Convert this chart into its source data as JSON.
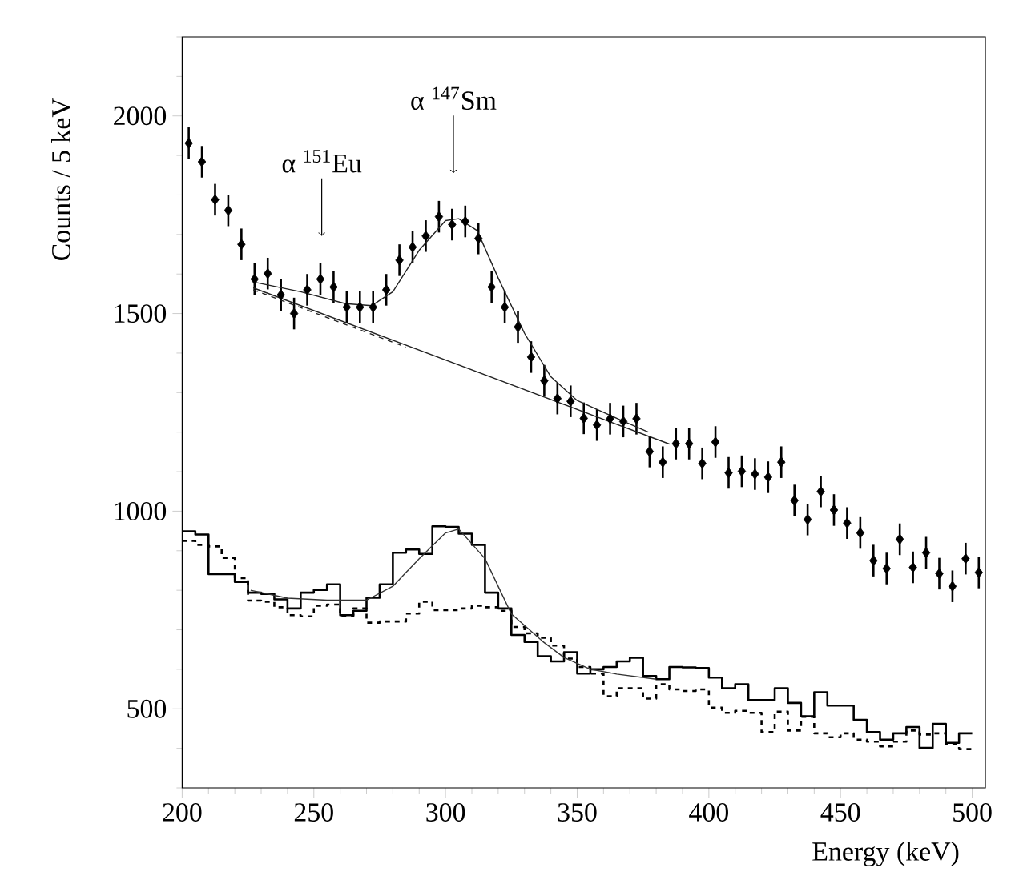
{
  "chart_data": {
    "type": "line",
    "xlabel": "Energy (keV)",
    "ylabel": "Counts / 5 keV",
    "xlim": [
      200,
      505
    ],
    "ylim": [
      300,
      2200
    ],
    "xticks": [
      200,
      {
        "value": 210,
        "label": null
      },
      {
        "value": 220,
        "label": null
      },
      {
        "value": 230,
        "label": null
      },
      {
        "value": 240,
        "label": null
      },
      250,
      {
        "value": 260,
        "label": null
      },
      {
        "value": 270,
        "label": null
      },
      {
        "value": 280,
        "label": null
      },
      {
        "value": 290,
        "label": null
      },
      300,
      {
        "value": 310,
        "label": null
      },
      {
        "value": 320,
        "label": null
      },
      {
        "value": 330,
        "label": null
      },
      {
        "value": 340,
        "label": null
      },
      350,
      {
        "value": 360,
        "label": null
      },
      {
        "value": 370,
        "label": null
      },
      {
        "value": 380,
        "label": null
      },
      {
        "value": 390,
        "label": null
      },
      400,
      {
        "value": 410,
        "label": null
      },
      {
        "value": 420,
        "label": null
      },
      {
        "value": 430,
        "label": null
      },
      {
        "value": 440,
        "label": null
      },
      450,
      {
        "value": 460,
        "label": null
      },
      {
        "value": 470,
        "label": null
      },
      {
        "value": 480,
        "label": null
      },
      {
        "value": 490,
        "label": null
      },
      500
    ],
    "yticks": [
      {
        "value": 300,
        "label": null
      },
      {
        "value": 400,
        "label": null
      },
      500,
      {
        "value": 600,
        "label": null
      },
      {
        "value": 700,
        "label": null
      },
      {
        "value": 800,
        "label": null
      },
      {
        "value": 900,
        "label": null
      },
      1000,
      {
        "value": 1100,
        "label": null
      },
      {
        "value": 1200,
        "label": null
      },
      {
        "value": 1300,
        "label": null
      },
      {
        "value": 1400,
        "label": null
      },
      1500,
      {
        "value": 1600,
        "label": null
      },
      {
        "value": 1700,
        "label": null
      },
      {
        "value": 1800,
        "label": null
      },
      {
        "value": 1900,
        "label": null
      },
      2000,
      {
        "value": 2100,
        "label": null
      },
      {
        "value": 2200,
        "label": null
      }
    ],
    "annotations": [
      {
        "text": "α $^{151}$Eu",
        "x": 253,
        "y": 1696
      },
      {
        "text": "α $^{147}$Sm",
        "x": 303,
        "y": 1855
      }
    ],
    "series": [
      {
        "type": "scatter",
        "marker": "diamond",
        "color": "#000000",
        "x": [
          202.5,
          207.5,
          212.5,
          217.5,
          222.5,
          227.5,
          232.5,
          237.5,
          242.5,
          247.5,
          252.5,
          257.5,
          262.5,
          267.5,
          272.5,
          277.5,
          282.5,
          287.5,
          292.5,
          297.5,
          302.5,
          307.5,
          312.5,
          317.5,
          322.5,
          327.5,
          332.5,
          337.5,
          342.5,
          347.5,
          352.5,
          357.5,
          362.5,
          367.5,
          372.5,
          377.5,
          382.5,
          387.5,
          392.5,
          397.5,
          402.5,
          407.5,
          412.5,
          417.5,
          422.5,
          427.5,
          432.5,
          437.5,
          442.5,
          447.5,
          452.5,
          457.5,
          462.5,
          467.5,
          472.5,
          477.5,
          482.5,
          487.5,
          492.5,
          497.5,
          502.5
        ],
        "values": [
          1931,
          1884,
          1788,
          1761,
          1675,
          1587,
          1601,
          1547,
          1500,
          1560,
          1587,
          1567,
          1516,
          1516,
          1516,
          1560,
          1635,
          1668,
          1696,
          1745,
          1725,
          1733,
          1690,
          1567,
          1516,
          1466,
          1390,
          1330,
          1285,
          1278,
          1235,
          1218,
          1234,
          1227,
          1234,
          1151,
          1124,
          1171,
          1171,
          1121,
          1175,
          1097,
          1101,
          1094,
          1086,
          1124,
          1027,
          979,
          1050,
          1003,
          970,
          945,
          875,
          855,
          929,
          858,
          895,
          842,
          810,
          880,
          845
        ],
        "errors": [
          40,
          40,
          40,
          40,
          40,
          40,
          40,
          40,
          40,
          40,
          40,
          40,
          40,
          40,
          40,
          40,
          40,
          40,
          40,
          40,
          40,
          40,
          40,
          40,
          40,
          40,
          40,
          40,
          40,
          40,
          40,
          40,
          40,
          40,
          40,
          40,
          40,
          40,
          40,
          40,
          40,
          40,
          40,
          40,
          40,
          40,
          40,
          40,
          40,
          40,
          40,
          40,
          40,
          40,
          40,
          40,
          40,
          40,
          40,
          40,
          40
        ]
      },
      {
        "line_style": "solid",
        "color": "#222222",
        "x": [
          227,
          245,
          262,
          272,
          280,
          290,
          300,
          305,
          312,
          320,
          330,
          340,
          350,
          365,
          377
        ],
        "values": [
          1580,
          1555,
          1525,
          1520,
          1555,
          1660,
          1735,
          1740,
          1710,
          1590,
          1450,
          1340,
          1280,
          1235,
          1200
        ]
      },
      {
        "line_style": "solid",
        "color": "#222222",
        "x": [
          227,
          385
        ],
        "values": [
          1565,
          1170
        ]
      },
      {
        "line_style": "dashed",
        "color": "#222222",
        "x": [
          227,
          255,
          285
        ],
        "values": [
          1560,
          1490,
          1415
        ]
      },
      {
        "type": "step",
        "line_style": "solid",
        "color": "#000000",
        "x": [
          200,
          205,
          210,
          215,
          220,
          225,
          230,
          235,
          240,
          245,
          250,
          255,
          260,
          265,
          270,
          275,
          280,
          285,
          290,
          295,
          300,
          305,
          310,
          315,
          320,
          325,
          330,
          335,
          340,
          345,
          350,
          355,
          360,
          365,
          370,
          375,
          380,
          385,
          390,
          395,
          400,
          405,
          410,
          415,
          420,
          425,
          430,
          435,
          440,
          445,
          450,
          455,
          460,
          465,
          470,
          475,
          480,
          485,
          490,
          495,
          500
        ],
        "values": [
          949,
          941,
          841,
          841,
          821,
          794,
          791,
          777,
          754,
          794,
          801,
          815,
          737,
          748,
          781,
          815,
          895,
          903,
          892,
          962,
          960,
          943,
          915,
          794,
          754,
          687,
          669,
          633,
          620,
          643,
          589,
          600,
          606,
          620,
          629,
          583,
          575,
          606,
          605,
          603,
          579,
          552,
          562,
          522,
          522,
          552,
          515,
          481,
          542,
          508,
          508,
          472,
          441,
          422,
          438,
          454,
          401,
          462,
          414,
          438,
          438
        ]
      },
      {
        "type": "step",
        "line_style": "dashed",
        "color": "#000000",
        "x": [
          200,
          205,
          210,
          215,
          220,
          225,
          230,
          235,
          240,
          245,
          250,
          255,
          260,
          265,
          270,
          275,
          280,
          285,
          290,
          295,
          300,
          305,
          310,
          315,
          320,
          325,
          330,
          335,
          340,
          345,
          350,
          355,
          360,
          365,
          370,
          375,
          380,
          385,
          390,
          395,
          400,
          405,
          410,
          415,
          420,
          425,
          430,
          435,
          440,
          445,
          450,
          455,
          460,
          465,
          470,
          475,
          480,
          485,
          490,
          495,
          500
        ],
        "values": [
          925,
          915,
          911,
          882,
          831,
          774,
          771,
          757,
          737,
          734,
          761,
          764,
          734,
          754,
          718,
          721,
          721,
          741,
          771,
          750,
          750,
          754,
          761,
          757,
          748,
          707,
          691,
          680,
          660,
          627,
          606,
          589,
          532,
          552,
          552,
          526,
          562,
          549,
          545,
          549,
          503,
          490,
          495,
          490,
          441,
          493,
          445,
          480,
          438,
          428,
          438,
          422,
          417,
          405,
          417,
          445,
          435,
          438,
          411,
          398,
          391
        ]
      },
      {
        "line_style": "solid",
        "color": "#333333",
        "x": [
          226,
          240,
          255,
          270,
          280,
          290,
          300,
          305,
          315,
          325,
          337,
          345,
          355,
          365,
          380
        ],
        "values": [
          800,
          780,
          775,
          775,
          810,
          880,
          945,
          955,
          880,
          740,
          670,
          630,
          600,
          588,
          575
        ]
      }
    ]
  }
}
